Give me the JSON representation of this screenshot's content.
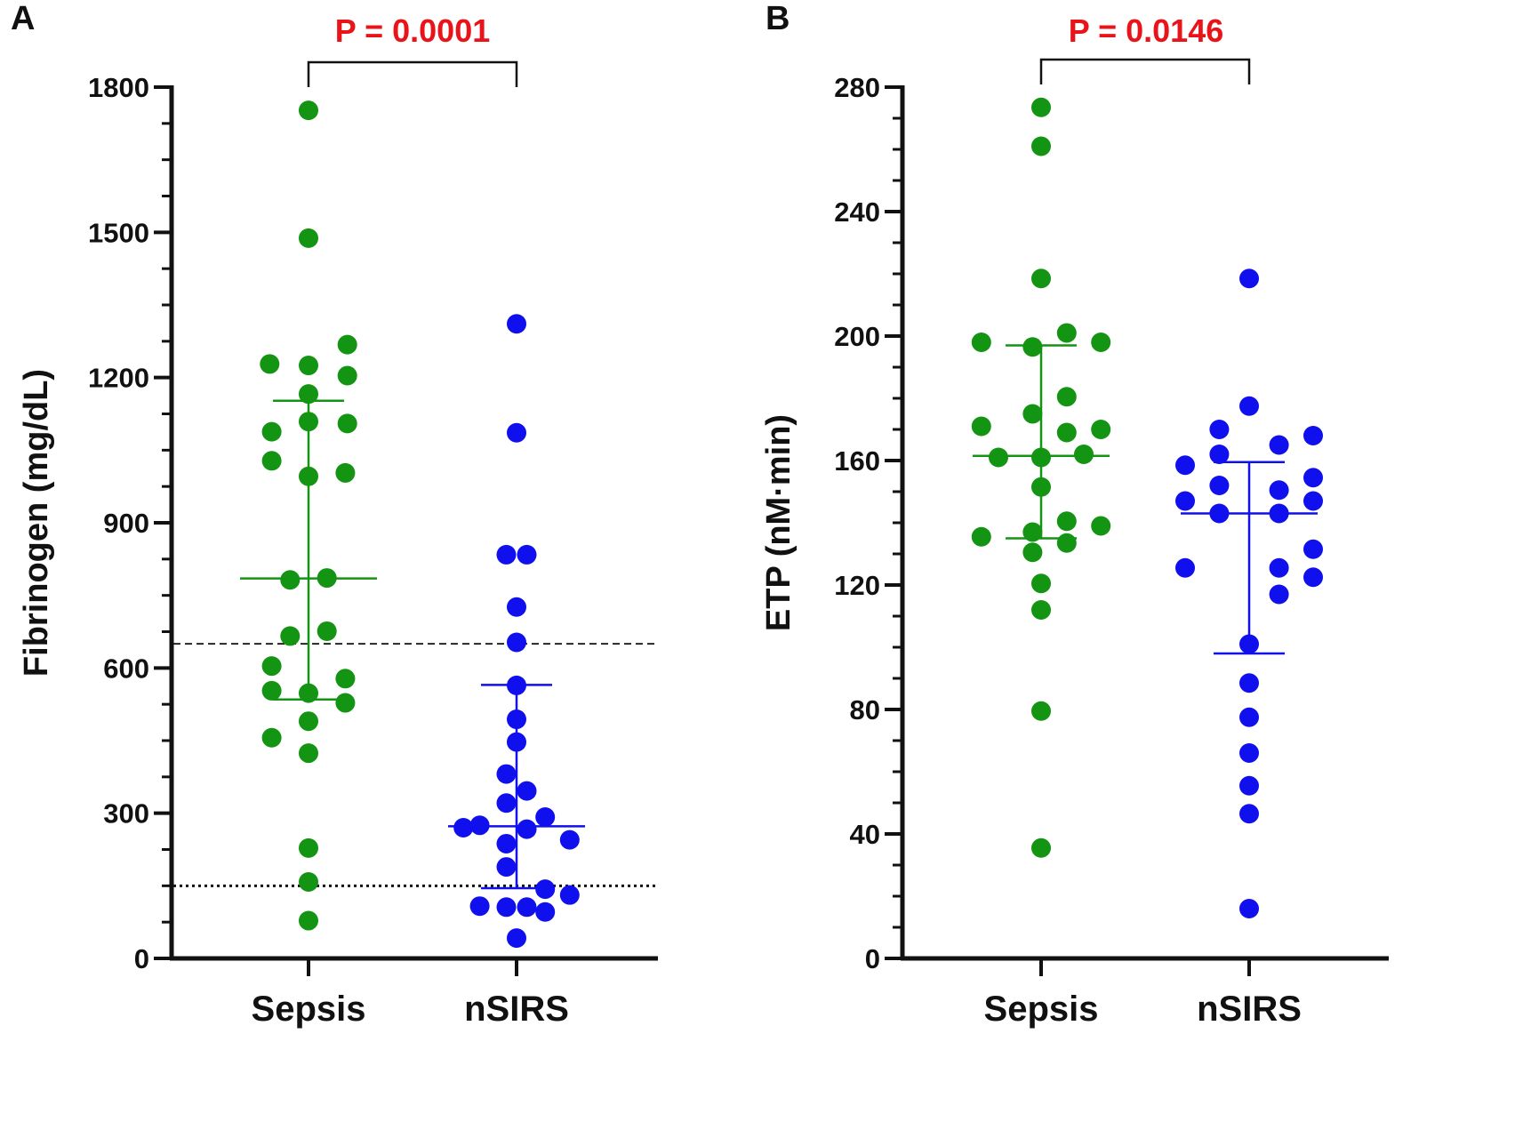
{
  "colors": {
    "sepsis": "#139413",
    "nsirs": "#1010ee",
    "pvalue": "#e8141a",
    "axis": "#111111"
  },
  "chart_data": [
    {
      "type": "scatter",
      "panel": "A",
      "ylabel": "Fibrinogen (mg/dL)",
      "ylim": [
        0,
        1800
      ],
      "yticks": [
        0,
        300,
        600,
        900,
        1200,
        1500,
        1800
      ],
      "categories": [
        "Sepsis",
        "nSIRS"
      ],
      "pvalue": "P = 0.0001",
      "reference_lines": [
        {
          "value": 650,
          "style": "dashed"
        },
        {
          "value": 150,
          "style": "dotted"
        }
      ],
      "series": [
        {
          "name": "Sepsis",
          "color_key": "sepsis",
          "median": 785,
          "q1": 535,
          "q3": 1152,
          "points": [
            {
              "y": 1752,
              "dx": 0
            },
            {
              "y": 1488,
              "dx": 0
            },
            {
              "y": 1268,
              "dx": 0.19
            },
            {
              "y": 1228,
              "dx": -0.19
            },
            {
              "y": 1225,
              "dx": 0
            },
            {
              "y": 1204,
              "dx": 0.19
            },
            {
              "y": 1166,
              "dx": 0
            },
            {
              "y": 1109,
              "dx": 0
            },
            {
              "y": 1105,
              "dx": 0.19
            },
            {
              "y": 1088,
              "dx": -0.18
            },
            {
              "y": 1028,
              "dx": -0.18
            },
            {
              "y": 1003,
              "dx": 0.18
            },
            {
              "y": 996,
              "dx": 0
            },
            {
              "y": 786,
              "dx": 0.09
            },
            {
              "y": 782,
              "dx": -0.09
            },
            {
              "y": 676,
              "dx": 0.09
            },
            {
              "y": 666,
              "dx": -0.09
            },
            {
              "y": 604,
              "dx": -0.18
            },
            {
              "y": 578,
              "dx": 0.18
            },
            {
              "y": 553,
              "dx": -0.18
            },
            {
              "y": 548,
              "dx": 0
            },
            {
              "y": 528,
              "dx": 0.18
            },
            {
              "y": 490,
              "dx": 0
            },
            {
              "y": 456,
              "dx": -0.18
            },
            {
              "y": 424,
              "dx": 0
            },
            {
              "y": 228,
              "dx": 0
            },
            {
              "y": 158,
              "dx": 0
            },
            {
              "y": 78,
              "dx": 0
            }
          ]
        },
        {
          "name": "nSIRS",
          "color_key": "nsirs",
          "median": 273,
          "q1": 145,
          "q3": 565,
          "points": [
            {
              "y": 1311,
              "dx": 0
            },
            {
              "y": 1086,
              "dx": 0
            },
            {
              "y": 834,
              "dx": -0.05
            },
            {
              "y": 834,
              "dx": 0.05
            },
            {
              "y": 726,
              "dx": 0
            },
            {
              "y": 653,
              "dx": 0
            },
            {
              "y": 564,
              "dx": 0
            },
            {
              "y": 494,
              "dx": 0
            },
            {
              "y": 447,
              "dx": 0
            },
            {
              "y": 381,
              "dx": -0.05
            },
            {
              "y": 346,
              "dx": 0.05
            },
            {
              "y": 321,
              "dx": -0.05
            },
            {
              "y": 292,
              "dx": 0.14
            },
            {
              "y": 275,
              "dx": -0.18
            },
            {
              "y": 270,
              "dx": -0.26
            },
            {
              "y": 267,
              "dx": 0.05
            },
            {
              "y": 245,
              "dx": 0.26
            },
            {
              "y": 237,
              "dx": -0.05
            },
            {
              "y": 189,
              "dx": -0.05
            },
            {
              "y": 143,
              "dx": 0.14
            },
            {
              "y": 131,
              "dx": 0.26
            },
            {
              "y": 108,
              "dx": -0.18
            },
            {
              "y": 106,
              "dx": -0.05
            },
            {
              "y": 106,
              "dx": 0.05
            },
            {
              "y": 96,
              "dx": 0.14
            },
            {
              "y": 42,
              "dx": 0
            }
          ]
        }
      ]
    },
    {
      "type": "scatter",
      "panel": "B",
      "ylabel": "ETP (nM·min)",
      "ylim": [
        0,
        280
      ],
      "yticks": [
        0,
        40,
        80,
        120,
        160,
        200,
        240,
        280
      ],
      "categories": [
        "Sepsis",
        "nSIRS"
      ],
      "pvalue": "P = 0.0146",
      "reference_lines": [],
      "series": [
        {
          "name": "Sepsis",
          "color_key": "sepsis",
          "median": 161.5,
          "q1": 135,
          "q3": 197,
          "points": [
            {
              "y": 273.5,
              "dx": 0
            },
            {
              "y": 261,
              "dx": 0
            },
            {
              "y": 218.5,
              "dx": 0
            },
            {
              "y": 201,
              "dx": 0.12
            },
            {
              "y": 198,
              "dx": -0.28
            },
            {
              "y": 198,
              "dx": 0.28
            },
            {
              "y": 196.5,
              "dx": -0.04
            },
            {
              "y": 180.5,
              "dx": 0.12
            },
            {
              "y": 175,
              "dx": -0.04
            },
            {
              "y": 171,
              "dx": -0.28
            },
            {
              "y": 170,
              "dx": 0.28
            },
            {
              "y": 169,
              "dx": 0.12
            },
            {
              "y": 162,
              "dx": 0.2
            },
            {
              "y": 161,
              "dx": -0.2
            },
            {
              "y": 161,
              "dx": 0
            },
            {
              "y": 151.5,
              "dx": 0
            },
            {
              "y": 140.5,
              "dx": 0.12
            },
            {
              "y": 139,
              "dx": 0.28
            },
            {
              "y": 137,
              "dx": -0.04
            },
            {
              "y": 135.5,
              "dx": -0.28
            },
            {
              "y": 133.5,
              "dx": 0.12
            },
            {
              "y": 130.5,
              "dx": -0.04
            },
            {
              "y": 120.5,
              "dx": 0
            },
            {
              "y": 112,
              "dx": 0
            },
            {
              "y": 79.5,
              "dx": 0
            },
            {
              "y": 35.5,
              "dx": 0
            }
          ]
        },
        {
          "name": "nSIRS",
          "color_key": "nsirs",
          "median": 143,
          "q1": 98,
          "q3": 159.5,
          "points": [
            {
              "y": 218.5,
              "dx": 0
            },
            {
              "y": 177.5,
              "dx": 0
            },
            {
              "y": 170,
              "dx": -0.14
            },
            {
              "y": 168,
              "dx": 0.3
            },
            {
              "y": 165,
              "dx": 0.14
            },
            {
              "y": 162,
              "dx": -0.14
            },
            {
              "y": 158.5,
              "dx": -0.3
            },
            {
              "y": 154.5,
              "dx": 0.3
            },
            {
              "y": 152,
              "dx": -0.14
            },
            {
              "y": 150.5,
              "dx": 0.14
            },
            {
              "y": 147,
              "dx": -0.3
            },
            {
              "y": 147,
              "dx": 0.3
            },
            {
              "y": 143,
              "dx": -0.14
            },
            {
              "y": 143,
              "dx": 0.14
            },
            {
              "y": 131.5,
              "dx": 0.3
            },
            {
              "y": 125.5,
              "dx": -0.3
            },
            {
              "y": 125.5,
              "dx": 0.14
            },
            {
              "y": 122.5,
              "dx": 0.3
            },
            {
              "y": 117,
              "dx": 0.14
            },
            {
              "y": 101,
              "dx": 0
            },
            {
              "y": 88.5,
              "dx": 0
            },
            {
              "y": 77.5,
              "dx": 0
            },
            {
              "y": 66,
              "dx": 0
            },
            {
              "y": 55.5,
              "dx": 0
            },
            {
              "y": 46.5,
              "dx": 0
            },
            {
              "y": 16,
              "dx": 0
            }
          ]
        }
      ]
    }
  ]
}
